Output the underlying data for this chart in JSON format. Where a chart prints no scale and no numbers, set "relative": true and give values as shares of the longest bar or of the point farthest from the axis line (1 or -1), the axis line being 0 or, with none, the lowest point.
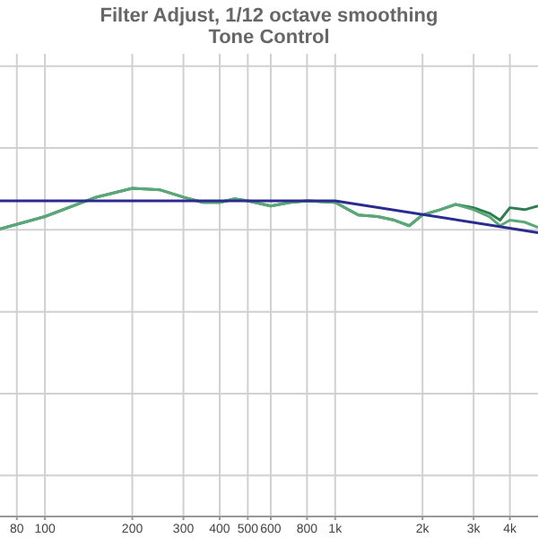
{
  "chart_data": {
    "type": "line",
    "title": "Filter Adjust, 1/12 octave smoothing",
    "subtitle": "Tone Control",
    "relative": true,
    "log": "x",
    "grid": true,
    "marker": "none",
    "line_style": "solid",
    "tick_labels": "x",
    "xlim": [
      70,
      5000
    ],
    "xticks": [
      80,
      100,
      200,
      300,
      400,
      500,
      600,
      800,
      {
        "value": 1000,
        "label": "1k"
      },
      {
        "value": 2000,
        "label": "2k"
      },
      {
        "value": 3000,
        "label": "3k"
      },
      {
        "value": 4000,
        "label": "4k"
      }
    ],
    "series": [
      {
        "color": "#2e7d4f",
        "x": [
          70,
          100,
          150,
          200,
          250,
          300,
          350,
          400,
          450,
          500,
          600,
          700,
          800,
          1000,
          1200,
          1400,
          1600,
          1800,
          2000,
          2300,
          2600,
          3000,
          3400,
          3700,
          4000,
          4500,
          5000
        ],
        "values": [
          0.876,
          0.914,
          0.973,
          1,
          0.995,
          0.973,
          0.957,
          0.957,
          0.968,
          0.962,
          0.946,
          0.957,
          0.962,
          0.957,
          0.919,
          0.914,
          0.903,
          0.886,
          0.919,
          0.935,
          0.951,
          0.941,
          0.924,
          0.903,
          0.941,
          0.935,
          0.946
        ]
      },
      {
        "color": "#5aa878",
        "x": [
          70,
          100,
          150,
          200,
          250,
          300,
          350,
          400,
          450,
          500,
          600,
          700,
          800,
          1000,
          1200,
          1400,
          1600,
          1800,
          2000,
          2300,
          2600,
          3000,
          3400,
          3700,
          4000,
          4500,
          5000
        ],
        "values": [
          0.876,
          0.914,
          0.973,
          1,
          0.995,
          0.973,
          0.957,
          0.957,
          0.968,
          0.962,
          0.946,
          0.957,
          0.962,
          0.957,
          0.919,
          0.914,
          0.903,
          0.886,
          0.919,
          0.935,
          0.951,
          0.935,
          0.914,
          0.886,
          0.903,
          0.897,
          0.881
        ]
      },
      {
        "color": "#2b2b8f",
        "x": [
          70,
          1000,
          5000
        ],
        "values": [
          0.962,
          0.962,
          0.865
        ]
      }
    ]
  }
}
